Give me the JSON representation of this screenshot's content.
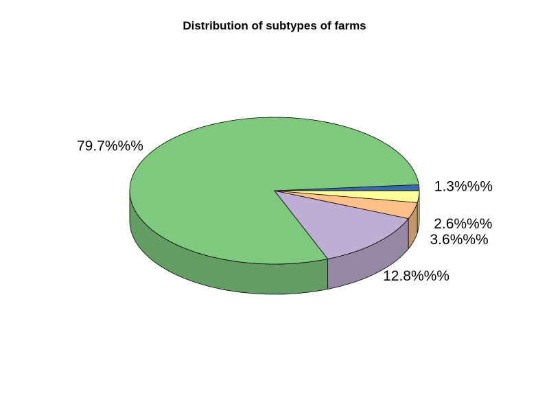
{
  "chart_data": {
    "type": "pie",
    "title": "Distribution of subtypes of farms",
    "slices": [
      {
        "value": 1.3,
        "label": "1.3%%%",
        "color": "#386cb0"
      },
      {
        "value": 79.7,
        "label": "79.7%%%",
        "color": "#7fc97f"
      },
      {
        "value": 12.8,
        "label": "12.8%%%",
        "color": "#beaed4"
      },
      {
        "value": 3.6,
        "label": "3.6%%%",
        "color": "#fdc086"
      },
      {
        "value": 2.6,
        "label": "2.6%%%",
        "color": "#ffff99"
      }
    ],
    "style": "3d",
    "direction": "counter-clockwise",
    "legend": "none"
  }
}
